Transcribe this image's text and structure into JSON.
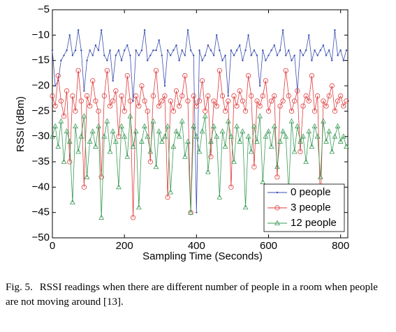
{
  "chart_data": {
    "type": "line",
    "xlabel": "Sampling Time (Seconds)",
    "ylabel": "RSSI (dBm)",
    "xlim": [
      0,
      820
    ],
    "xticks": [
      0,
      200,
      400,
      600,
      800
    ],
    "ylim": [
      -50,
      -5
    ],
    "yticks": [
      {
        "value": -50,
        "label": "−50"
      },
      {
        "value": -45,
        "label": "−45"
      },
      {
        "value": -40,
        "label": "−40"
      },
      {
        "value": -35,
        "label": "−35"
      },
      {
        "value": -30,
        "label": "−30"
      },
      {
        "value": -25,
        "label": "−25"
      },
      {
        "value": -20,
        "label": "−20"
      },
      {
        "value": -15,
        "label": "−15"
      },
      {
        "value": -10,
        "label": "−10"
      },
      {
        "value": -5,
        "label": "−5"
      }
    ],
    "legend": "lower right",
    "x": [
      0,
      8,
      16,
      24,
      32,
      40,
      48,
      56,
      64,
      72,
      80,
      88,
      96,
      104,
      112,
      120,
      128,
      136,
      144,
      152,
      160,
      168,
      176,
      184,
      192,
      200,
      208,
      216,
      224,
      232,
      240,
      248,
      256,
      264,
      272,
      280,
      288,
      296,
      304,
      312,
      320,
      328,
      336,
      344,
      352,
      360,
      368,
      376,
      384,
      392,
      400,
      408,
      416,
      424,
      432,
      440,
      448,
      456,
      464,
      472,
      480,
      488,
      496,
      504,
      512,
      520,
      528,
      536,
      544,
      552,
      560,
      568,
      576,
      584,
      592,
      600,
      608,
      616,
      624,
      632,
      640,
      648,
      656,
      664,
      672,
      680,
      688,
      696,
      704,
      712,
      720,
      728,
      736,
      744,
      752,
      760,
      768,
      776,
      784,
      792,
      800,
      808,
      816
    ],
    "series": [
      {
        "name": "0 people",
        "color": "#3b4fb0",
        "marker": "dot",
        "values": [
          -13,
          -20,
          -19,
          -15,
          -14,
          -13,
          -10,
          -14,
          -13,
          -9,
          -13,
          -21,
          -15,
          -13,
          -14,
          -12,
          -13,
          -9,
          -14,
          -15,
          -13,
          -19,
          -14,
          -13,
          -15,
          -13,
          -12,
          -14,
          -23,
          -13,
          -14,
          -13,
          -9,
          -15,
          -14,
          -13,
          -13,
          -11,
          -14,
          -20,
          -13,
          -14,
          -13,
          -12,
          -15,
          -13,
          -14,
          -9,
          -13,
          -14,
          -45,
          -13,
          -15,
          -14,
          -12,
          -13,
          -14,
          -10,
          -13,
          -15,
          -14,
          -22,
          -13,
          -14,
          -13,
          -12,
          -15,
          -13,
          -10,
          -14,
          -13,
          -14,
          -20,
          -13,
          -15,
          -14,
          -13,
          -12,
          -14,
          -13,
          -9,
          -14,
          -13,
          -15,
          -14,
          -21,
          -13,
          -14,
          -13,
          -10,
          -15,
          -13,
          -14,
          -13,
          -12,
          -14,
          -13,
          -15,
          -9,
          -14,
          -13,
          -15,
          -13
        ]
      },
      {
        "name": "3 people",
        "color": "#e03a3a",
        "marker": "circle",
        "values": [
          -22,
          -24,
          -18,
          -23,
          -26,
          -21,
          -35,
          -22,
          -25,
          -17,
          -23,
          -40,
          -22,
          -24,
          -19,
          -23,
          -25,
          -38,
          -22,
          -17,
          -24,
          -23,
          -21,
          -30,
          -22,
          -25,
          -18,
          -23,
          -46,
          -22,
          -24,
          -20,
          -23,
          -25,
          -35,
          -22,
          -17,
          -24,
          -23,
          -22,
          -42,
          -23,
          -25,
          -21,
          -24,
          -22,
          -18,
          -23,
          -45,
          -22,
          -24,
          -23,
          -19,
          -25,
          -22,
          -34,
          -23,
          -24,
          -17,
          -22,
          -25,
          -23,
          -40,
          -22,
          -24,
          -21,
          -23,
          -25,
          -18,
          -22,
          -36,
          -23,
          -24,
          -22,
          -19,
          -25,
          -23,
          -22,
          -38,
          -24,
          -23,
          -17,
          -22,
          -25,
          -23,
          -21,
          -33,
          -24,
          -22,
          -23,
          -18,
          -25,
          -22,
          -44,
          -23,
          -24,
          -22,
          -20,
          -25,
          -23,
          -22,
          -24,
          -23
        ]
      },
      {
        "name": "12 people",
        "color": "#3a9a55",
        "marker": "triangle",
        "values": [
          -30,
          -28,
          -32,
          -27,
          -35,
          -29,
          -31,
          -43,
          -28,
          -33,
          -30,
          -26,
          -38,
          -31,
          -29,
          -32,
          -28,
          -46,
          -30,
          -27,
          -33,
          -29,
          -31,
          -40,
          -28,
          -30,
          -34,
          -26,
          -32,
          -29,
          -44,
          -31,
          -28,
          -30,
          -33,
          -27,
          -36,
          -29,
          -31,
          -30,
          -28,
          -41,
          -32,
          -29,
          -30,
          -27,
          -34,
          -31,
          -45,
          -28,
          -30,
          -33,
          -29,
          -26,
          -37,
          -31,
          -28,
          -30,
          -42,
          -29,
          -32,
          -27,
          -30,
          -35,
          -28,
          -31,
          -29,
          -44,
          -30,
          -33,
          -28,
          -31,
          -26,
          -39,
          -30,
          -29,
          -32,
          -28,
          -36,
          -31,
          -29,
          -30,
          -41,
          -27,
          -33,
          -28,
          -31,
          -30,
          -35,
          -29,
          -32,
          -28,
          -30,
          -38,
          -27,
          -31,
          -29,
          -33,
          -30,
          -28,
          -31,
          -30,
          -32
        ]
      }
    ]
  },
  "caption": {
    "label": "Fig. 5.",
    "text": "RSSI readings when there are different number of people in a room when people are not moving around [13]."
  }
}
